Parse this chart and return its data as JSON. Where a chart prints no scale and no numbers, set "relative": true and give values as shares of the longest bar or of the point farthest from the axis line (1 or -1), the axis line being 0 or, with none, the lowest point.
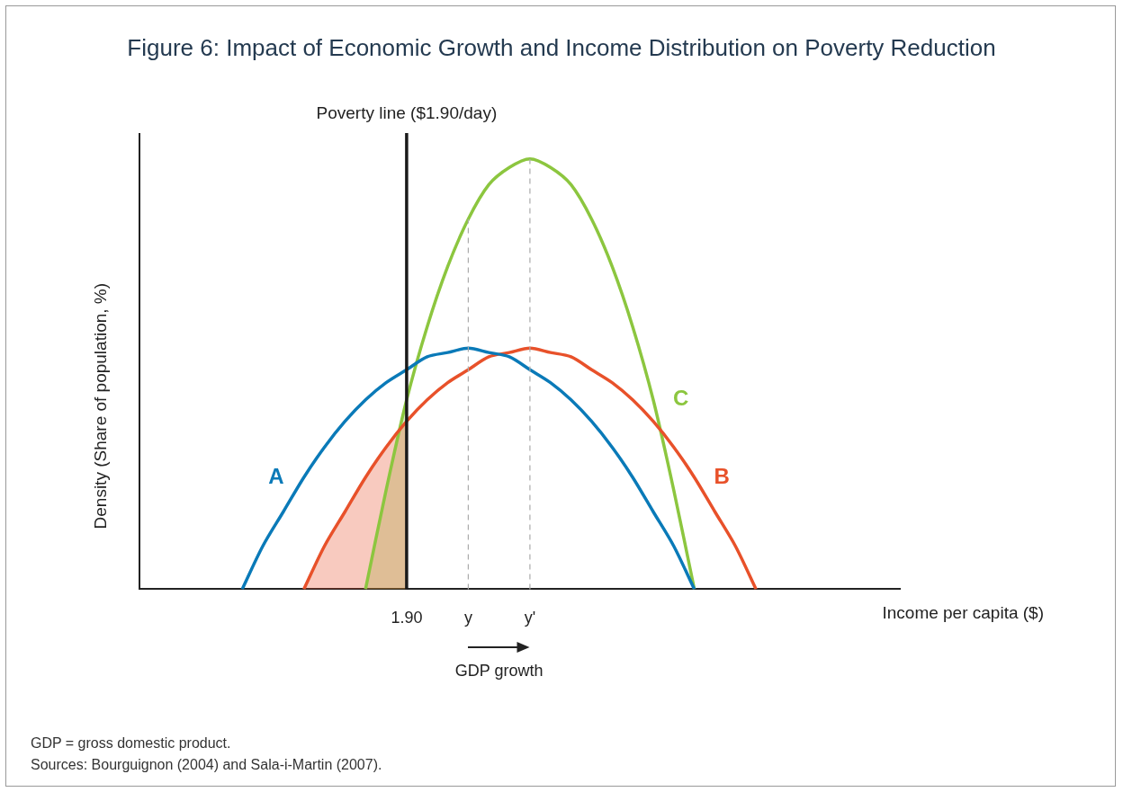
{
  "chart_data": {
    "type": "line",
    "title": "Figure 6: Impact of Economic Growth and Income Distribution on Poverty Reduction",
    "xlabel": "Income per capita ($)",
    "ylabel": "Density (Share of population, %)",
    "relative": true,
    "grid": false,
    "legend": false,
    "tick_labels": "x",
    "marker": "none",
    "categories": [
      null,
      null,
      null,
      null,
      null,
      null,
      null,
      null,
      null,
      null,
      null,
      null,
      null,
      "1.90",
      null,
      null,
      "y",
      null,
      null,
      "y'",
      null,
      null,
      null,
      null,
      null,
      null,
      null,
      null,
      null,
      null,
      null,
      null,
      null,
      null,
      null,
      null,
      null,
      null
    ],
    "series": [
      {
        "name": "A",
        "color": "#0a7ab8",
        "values": [
          null,
          null,
          null,
          null,
          null,
          0,
          0.1,
          0.18,
          0.26,
          0.33,
          0.39,
          0.44,
          0.48,
          0.51,
          0.54,
          0.55,
          0.56,
          0.55,
          0.54,
          0.51,
          0.48,
          0.44,
          0.39,
          0.33,
          0.26,
          0.18,
          0.1,
          0,
          null,
          null,
          null,
          null,
          null,
          null,
          null,
          null,
          null,
          null
        ]
      },
      {
        "name": "B",
        "color": "#e8512a",
        "values": [
          null,
          null,
          null,
          null,
          null,
          null,
          null,
          null,
          0,
          0.1,
          0.18,
          0.26,
          0.33,
          0.39,
          0.44,
          0.48,
          0.51,
          0.54,
          0.55,
          0.56,
          0.55,
          0.54,
          0.51,
          0.48,
          0.44,
          0.39,
          0.33,
          0.26,
          0.18,
          0.1,
          0,
          null,
          null,
          null,
          null,
          null,
          null,
          null
        ]
      },
      {
        "name": "C",
        "color": "#8cc63f",
        "values": [
          null,
          null,
          null,
          null,
          null,
          null,
          null,
          null,
          null,
          null,
          null,
          0,
          0.23,
          0.44,
          0.61,
          0.75,
          0.86,
          0.94,
          0.98,
          1,
          0.98,
          0.94,
          0.86,
          0.75,
          0.61,
          0.44,
          0.23,
          0,
          null,
          null,
          null,
          null,
          null,
          null,
          null,
          null,
          null,
          null
        ]
      },
      {
        "type": "area",
        "color": "#e8512a",
        "values": [
          null,
          null,
          null,
          null,
          null,
          null,
          null,
          null,
          0,
          0.1,
          0.18,
          0.26,
          0.33,
          0.39,
          null,
          null,
          null,
          null,
          null,
          null,
          null,
          null,
          null,
          null,
          null,
          null,
          null,
          null,
          null,
          null,
          null,
          null,
          null,
          null,
          null,
          null,
          null,
          null
        ]
      },
      {
        "type": "area",
        "color": "#8cc63f",
        "values": [
          null,
          null,
          null,
          null,
          null,
          null,
          null,
          null,
          null,
          null,
          null,
          0,
          0.23,
          0.44,
          null,
          null,
          null,
          null,
          null,
          null,
          null,
          null,
          null,
          null,
          null,
          null,
          null,
          null,
          null,
          null,
          null,
          null,
          null,
          null,
          null,
          null,
          null,
          null
        ]
      }
    ],
    "ref_lines": [
      {
        "axis": "x",
        "value": "1.90",
        "label": "Poverty line ($1.90/day)",
        "color": "#1a1a1a"
      },
      {
        "axis": "x",
        "value": "y",
        "color": "#aaaaaa",
        "line_style": "dashed"
      },
      {
        "axis": "x",
        "value": "y'",
        "color": "#aaaaaa",
        "line_style": "dashed"
      }
    ],
    "annotations": [
      "GDP growth",
      "GDP = gross domestic product.",
      "Sources: Bourguignon (2004) and Sala-i-Martin (2007)."
    ]
  }
}
